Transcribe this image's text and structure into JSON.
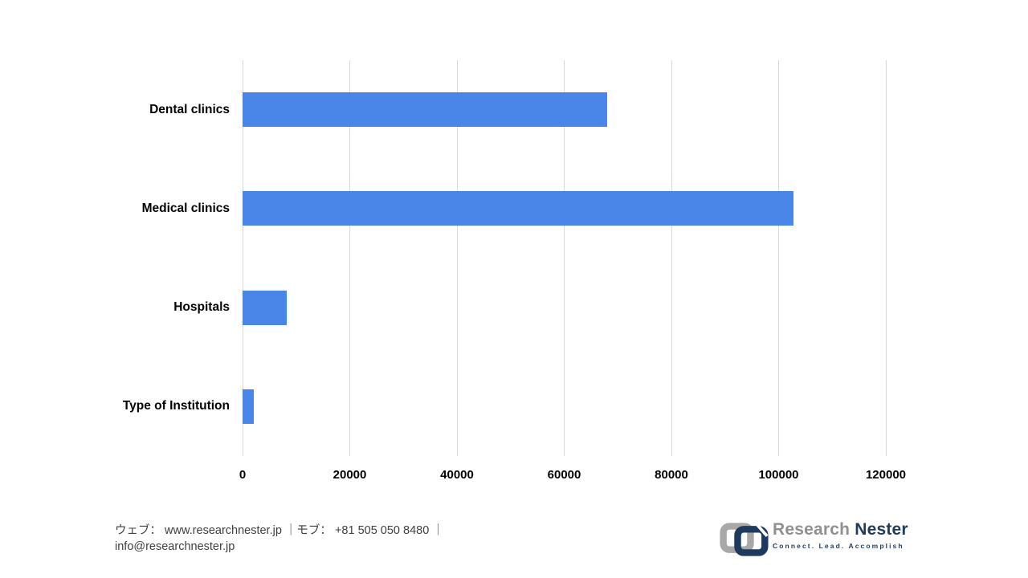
{
  "chart_data": {
    "type": "bar",
    "orientation": "horizontal",
    "title": "",
    "categories": [
      "Dental clinics",
      "Medical clinics",
      "Hospitals",
      "Type of Institution"
    ],
    "values": [
      68000,
      102700,
      8300,
      2100
    ],
    "x_tick_labels": [
      "0",
      "20000",
      "40000",
      "60000",
      "80000",
      "100000",
      "120000"
    ],
    "x_tick_values": [
      0,
      20000,
      40000,
      60000,
      80000,
      100000,
      120000
    ],
    "xlim": [
      0,
      120000
    ],
    "grid": true,
    "legend": false,
    "bar_color": "#4A86E8",
    "gridline_color": "#D9D9D9",
    "tick_label_color": "#000000"
  },
  "footer": {
    "contact_line1": "ウェブ： www.researchnester.jp ｜モブ： +81 505 050 8480 ｜",
    "contact_line2": "info@researchnester.jp",
    "logo": {
      "brand_first": "Research",
      "brand_second": "Nester",
      "tagline": "Connect. Lead. Accomplish",
      "gray_color": "#A8A8A8",
      "navy_color": "#1E3A5C"
    }
  }
}
